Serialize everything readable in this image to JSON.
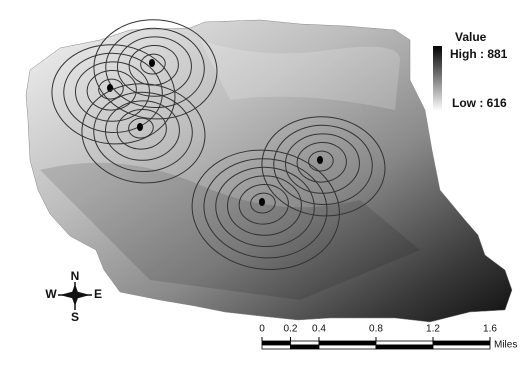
{
  "legend": {
    "title": "Value",
    "high": "High : 881",
    "low": "Low : 616"
  },
  "compass": {
    "north": "N",
    "south": "S",
    "east": "E",
    "west": "W"
  },
  "scale_bar": {
    "ticks": [
      0,
      0.2,
      0.4,
      0.8,
      1.2,
      1.6
    ],
    "unit": "Miles"
  }
}
